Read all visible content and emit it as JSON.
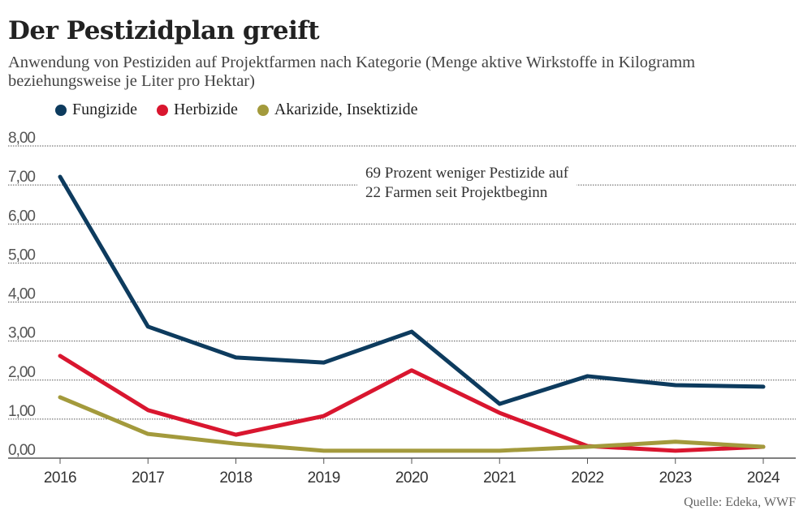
{
  "chart_data": {
    "type": "line",
    "title": "Der Pestizidplan greift",
    "subtitle": "Anwendung von Pestiziden auf Projektfarmen nach Kategorie (Menge aktive Wirkstoffe in Kilogramm beziehungsweise je Liter pro Hektar)",
    "x": [
      "2016",
      "2017",
      "2018",
      "2019",
      "2020",
      "2021",
      "2022",
      "2023",
      "2024"
    ],
    "yticks": [
      "0,00",
      "1,00",
      "2,00",
      "3,00",
      "4,00",
      "5,00",
      "6,00",
      "7,00",
      "8,00"
    ],
    "ylim": [
      0,
      8
    ],
    "grid": true,
    "legend_position": "top-left",
    "series": [
      {
        "name": "Fungizide",
        "color": "#0d3b5e",
        "values": [
          7.21,
          3.37,
          2.58,
          2.45,
          3.24,
          1.39,
          2.1,
          1.87,
          1.83
        ]
      },
      {
        "name": "Herbizide",
        "color": "#d9162f",
        "values": [
          2.62,
          1.23,
          0.6,
          1.08,
          2.25,
          1.16,
          0.31,
          0.19,
          0.29
        ]
      },
      {
        "name": "Akarizide, Insektizide",
        "color": "#a39a3c",
        "values": [
          1.56,
          0.62,
          0.37,
          0.19,
          0.19,
          0.19,
          0.29,
          0.42,
          0.29
        ]
      }
    ],
    "annotation": [
      "69 Prozent weniger Pestizide auf",
      "22 Farmen seit Projektbeginn"
    ],
    "source": "Quelle: Edeka, WWF"
  }
}
